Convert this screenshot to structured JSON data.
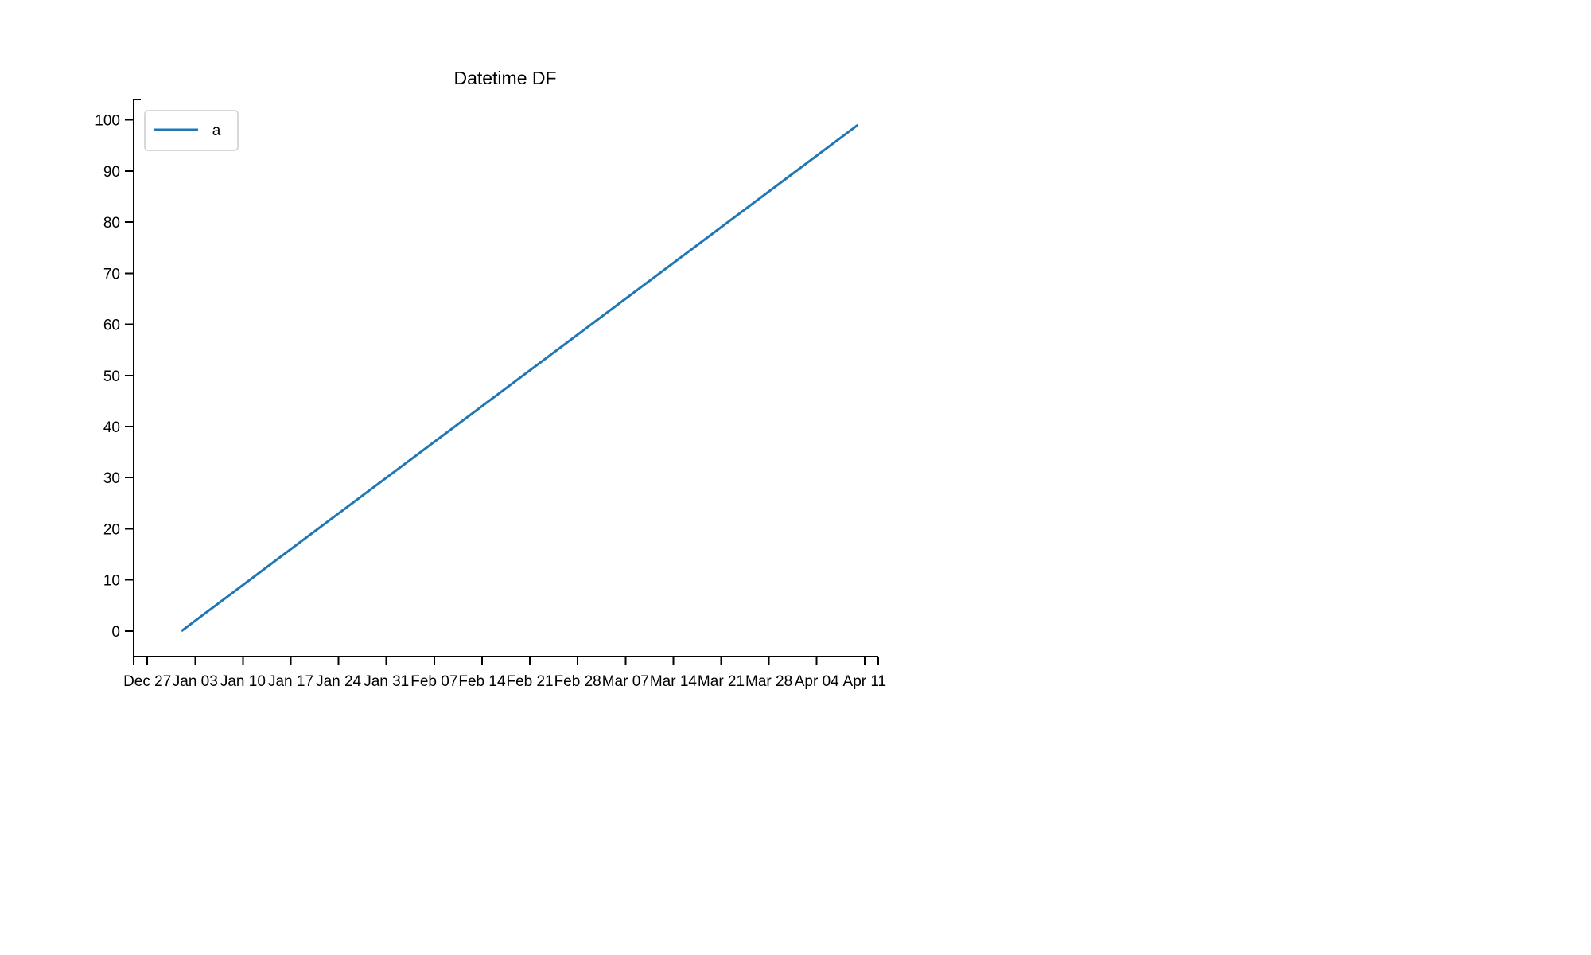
{
  "chart_data": {
    "type": "line",
    "title": "Datetime DF",
    "xlabel": "",
    "ylabel": "",
    "x_axis": {
      "kind": "date",
      "range": [
        "2020-12-25",
        "2021-04-13"
      ],
      "ticks": [
        {
          "date": "2020-12-27",
          "label": "Dec 27"
        },
        {
          "date": "2021-01-03",
          "label": "Jan 03"
        },
        {
          "date": "2021-01-10",
          "label": "Jan 10"
        },
        {
          "date": "2021-01-17",
          "label": "Jan 17"
        },
        {
          "date": "2021-01-24",
          "label": "Jan 24"
        },
        {
          "date": "2021-01-31",
          "label": "Jan 31"
        },
        {
          "date": "2021-02-07",
          "label": "Feb 07"
        },
        {
          "date": "2021-02-14",
          "label": "Feb 14"
        },
        {
          "date": "2021-02-21",
          "label": "Feb 21"
        },
        {
          "date": "2021-02-28",
          "label": "Feb 28"
        },
        {
          "date": "2021-03-07",
          "label": "Mar 07"
        },
        {
          "date": "2021-03-14",
          "label": "Mar 14"
        },
        {
          "date": "2021-03-21",
          "label": "Mar 21"
        },
        {
          "date": "2021-03-28",
          "label": "Mar 28"
        },
        {
          "date": "2021-04-04",
          "label": "Apr 04"
        },
        {
          "date": "2021-04-11",
          "label": "Apr 11"
        }
      ]
    },
    "y_axis": {
      "range": [
        -5,
        104
      ],
      "ticks": [
        0,
        10,
        20,
        30,
        40,
        50,
        60,
        70,
        80,
        90,
        100
      ]
    },
    "grid": false,
    "legend": {
      "position": "top-left"
    },
    "series": [
      {
        "name": "a",
        "color": "#1f77b4",
        "points": [
          {
            "x": "2021-01-01",
            "y": 0
          },
          {
            "x": "2021-04-10",
            "y": 99
          }
        ]
      }
    ]
  }
}
